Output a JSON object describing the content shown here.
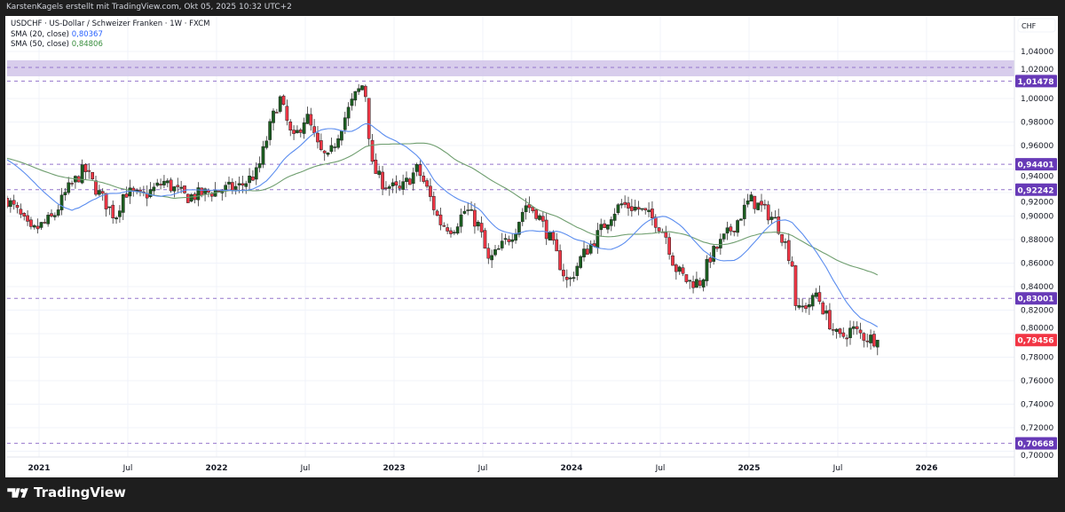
{
  "header": {
    "attribution": "KarstenKagels erstellt mit TradingView.com, Okt 05, 2025 10:32 UTC+2"
  },
  "legend": {
    "symbol": "USDCHF · US-Dollar / Schweizer Franken · 1W · FXCM",
    "sma20_label": "SMA (20, close)",
    "sma20_value": "0,80367",
    "sma50_label": "SMA (50, close)",
    "sma50_value": "0,84806"
  },
  "footer": {
    "brand": "TradingView"
  },
  "chart_data": {
    "type": "candlestick",
    "symbol": "USDCHF",
    "interval": "1W",
    "currency": "CHF",
    "ylim": [
      0.7,
      1.04
    ],
    "y_ticks": [
      "1,04000",
      "1,02000",
      "1,00000",
      "0,98000",
      "0,96000",
      "0,94000",
      "0,92000",
      "0,90000",
      "0,88000",
      "0,86000",
      "0,84000",
      "0,82000",
      "0,80000",
      "0,78000",
      "0,76000",
      "0,74000",
      "0,72000",
      "0,70000"
    ],
    "x_ticks": [
      {
        "date": 2021.0,
        "label": "2021",
        "major": true
      },
      {
        "date": 2021.5,
        "label": "Jul",
        "major": false
      },
      {
        "date": 2022.0,
        "label": "2022",
        "major": true
      },
      {
        "date": 2022.5,
        "label": "Jul",
        "major": false
      },
      {
        "date": 2023.0,
        "label": "2023",
        "major": true
      },
      {
        "date": 2023.5,
        "label": "Jul",
        "major": false
      },
      {
        "date": 2024.0,
        "label": "2024",
        "major": true
      },
      {
        "date": 2024.5,
        "label": "Jul",
        "major": false
      },
      {
        "date": 2025.0,
        "label": "2025",
        "major": true
      },
      {
        "date": 2025.5,
        "label": "Jul",
        "major": false
      },
      {
        "date": 2026.0,
        "label": "2026",
        "major": true
      }
    ],
    "xlim": [
      2020.82,
      2026.5
    ],
    "close_path": [
      [
        2020.82,
        0.914
      ],
      [
        2020.88,
        0.903
      ],
      [
        2020.955,
        0.886
      ],
      [
        2021.08,
        0.899
      ],
      [
        2021.155,
        0.921
      ],
      [
        2021.255,
        0.94
      ],
      [
        2021.33,
        0.921
      ],
      [
        2021.43,
        0.899
      ],
      [
        2021.48,
        0.921
      ],
      [
        2021.58,
        0.916
      ],
      [
        2021.705,
        0.929
      ],
      [
        2021.83,
        0.916
      ],
      [
        2021.98,
        0.921
      ],
      [
        2022.13,
        0.925
      ],
      [
        2022.23,
        0.937
      ],
      [
        2022.305,
        0.978
      ],
      [
        2022.355,
        1.001
      ],
      [
        2022.43,
        0.963
      ],
      [
        2022.505,
        0.986
      ],
      [
        2022.58,
        0.955
      ],
      [
        2022.63,
        0.948
      ],
      [
        2022.705,
        0.978
      ],
      [
        2022.78,
        1.002
      ],
      [
        2022.82,
        1.011
      ],
      [
        2022.845,
        1.001
      ],
      [
        2022.87,
        0.944
      ],
      [
        2022.93,
        0.929
      ],
      [
        2023.03,
        0.921
      ],
      [
        2023.13,
        0.94
      ],
      [
        2023.18,
        0.925
      ],
      [
        2023.255,
        0.895
      ],
      [
        2023.33,
        0.889
      ],
      [
        2023.405,
        0.906
      ],
      [
        2023.48,
        0.891
      ],
      [
        2023.53,
        0.861
      ],
      [
        2023.58,
        0.869
      ],
      [
        2023.68,
        0.888
      ],
      [
        2023.74,
        0.91
      ],
      [
        2023.805,
        0.903
      ],
      [
        2023.88,
        0.88
      ],
      [
        2023.98,
        0.842
      ],
      [
        2024.055,
        0.865
      ],
      [
        2024.13,
        0.88
      ],
      [
        2024.23,
        0.903
      ],
      [
        2024.28,
        0.91
      ],
      [
        2024.38,
        0.906
      ],
      [
        2024.48,
        0.895
      ],
      [
        2024.53,
        0.884
      ],
      [
        2024.58,
        0.857
      ],
      [
        2024.655,
        0.844
      ],
      [
        2024.73,
        0.844
      ],
      [
        2024.78,
        0.865
      ],
      [
        2024.855,
        0.88
      ],
      [
        2024.93,
        0.895
      ],
      [
        2025.005,
        0.914
      ],
      [
        2025.08,
        0.906
      ],
      [
        2025.155,
        0.895
      ],
      [
        2025.205,
        0.876
      ],
      [
        2025.255,
        0.854
      ],
      [
        2025.265,
        0.816
      ],
      [
        2025.305,
        0.823
      ],
      [
        2025.355,
        0.827
      ],
      [
        2025.38,
        0.835
      ],
      [
        2025.43,
        0.816
      ],
      [
        2025.505,
        0.795
      ],
      [
        2025.58,
        0.804
      ],
      [
        2025.655,
        0.797
      ],
      [
        2025.73,
        0.79456
      ]
    ],
    "sma_seed_price": 0.95,
    "sma20": {
      "period": 20,
      "color": "#5b8def",
      "last": 0.80367
    },
    "sma50": {
      "period": 50,
      "color": "#6f9e6f",
      "last": 0.84806
    },
    "up_color": "#1b5e20",
    "down_color": "#f23645",
    "horizontal_levels": [
      {
        "price": 1.01478,
        "label": "1,01478"
      },
      {
        "price": 0.94401,
        "label": "0,94401"
      },
      {
        "price": 0.92242,
        "label": "0,92242"
      },
      {
        "price": 0.83001,
        "label": "0,83001"
      },
      {
        "price": 0.70668,
        "label": "0,70668"
      }
    ],
    "zone": {
      "top": 1.0325,
      "bottom": 1.0189,
      "mid": 1.0264,
      "color": "#d1c4e9"
    },
    "level_color": "#673ab7",
    "last_price": {
      "price": 0.79456,
      "label": "0,79456",
      "color": "#f23645"
    }
  }
}
